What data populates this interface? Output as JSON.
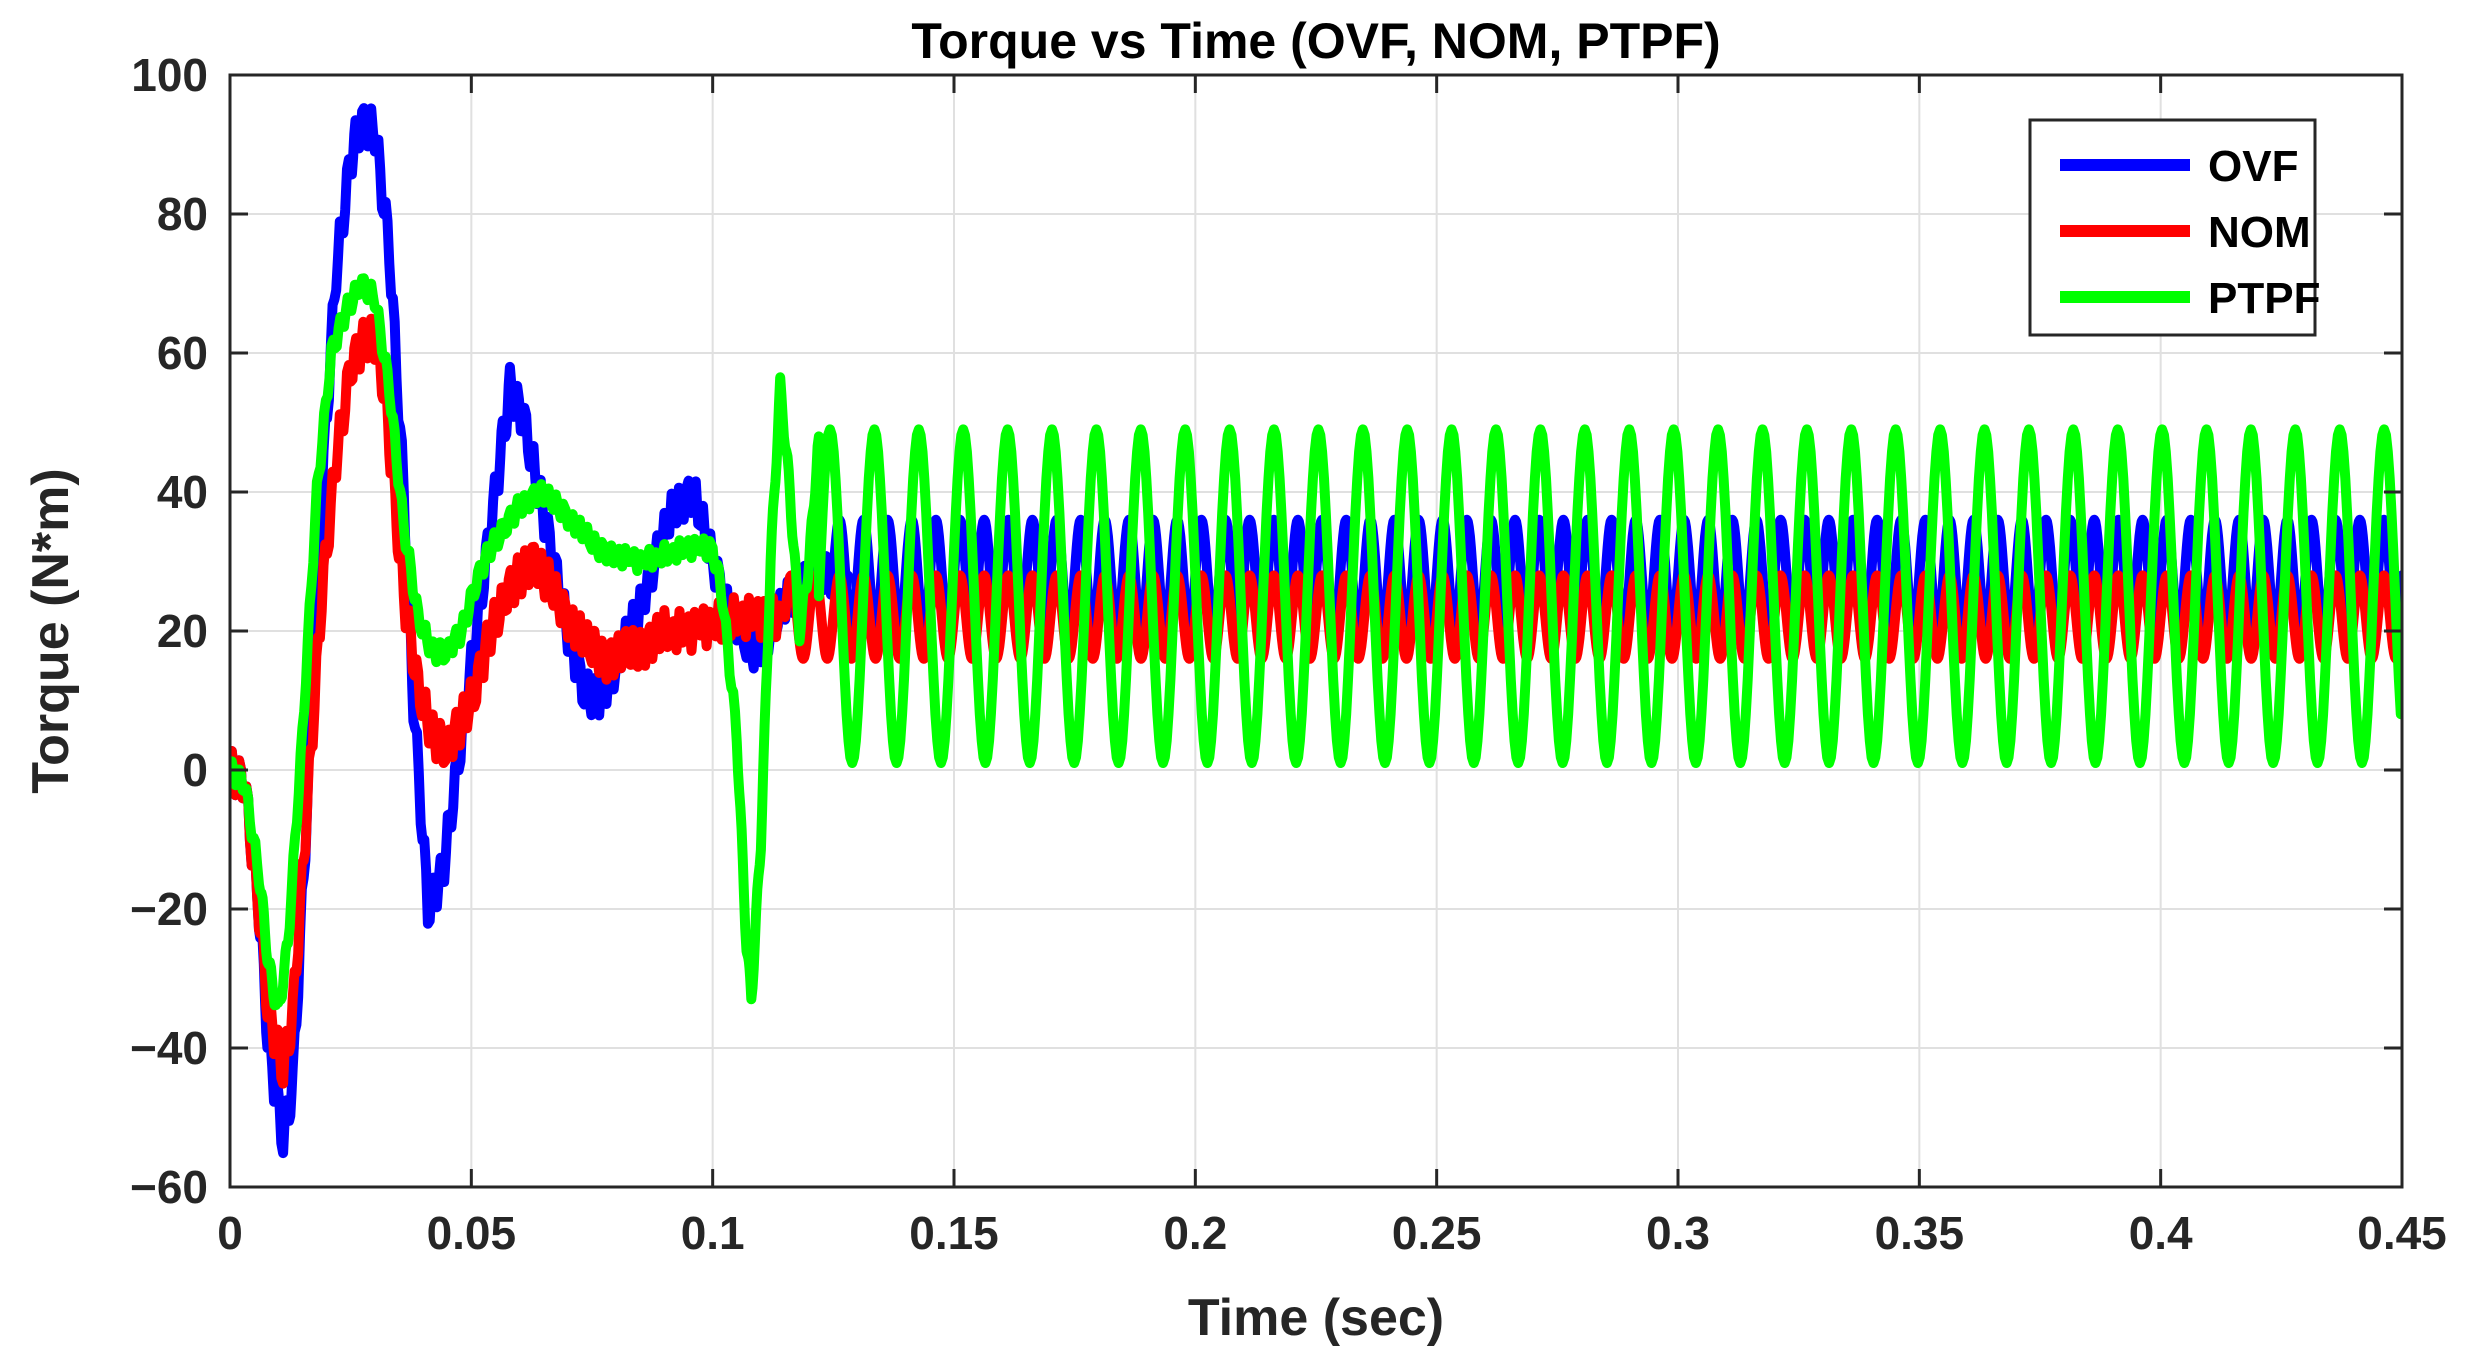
{
  "chart_data": {
    "type": "line",
    "title": "Torque vs Time (OVF, NOM, PTPF)",
    "xlabel": "Time (sec)",
    "ylabel": "Torque (N*m)",
    "xlim": [
      0,
      0.45
    ],
    "ylim": [
      -60,
      100
    ],
    "xticks": [
      0,
      0.05,
      0.1,
      0.15,
      0.2,
      0.25,
      0.3,
      0.35,
      0.4,
      0.45
    ],
    "xtick_labels": [
      "0",
      "0.05",
      "0.1",
      "0.15",
      "0.2",
      "0.25",
      "0.3",
      "0.35",
      "0.4",
      "0.45"
    ],
    "yticks": [
      -60,
      -40,
      -20,
      0,
      20,
      40,
      60,
      80,
      100
    ],
    "ytick_labels": [
      "−60",
      "−40",
      "−20",
      "0",
      "20",
      "40",
      "60",
      "80",
      "100"
    ],
    "grid": true,
    "legend_position": "top-right",
    "series": [
      {
        "name": "OVF",
        "color": "#0000ff",
        "x": [
          0,
          0.003,
          0.006,
          0.008,
          0.011,
          0.013,
          0.016,
          0.019,
          0.022,
          0.025,
          0.027,
          0.03,
          0.033,
          0.036,
          0.038,
          0.041,
          0.044,
          0.047,
          0.05,
          0.053,
          0.056,
          0.058,
          0.061,
          0.064,
          0.067,
          0.07,
          0.073,
          0.076,
          0.08,
          0.084,
          0.088,
          0.092,
          0.096,
          0.1,
          0.104,
          0.108,
          0.112,
          0.116,
          0.12,
          0.124,
          0.128
        ],
        "y": [
          0,
          -2,
          -20,
          -40,
          -53,
          -45,
          -5,
          40,
          72,
          88,
          93,
          92,
          75,
          40,
          10,
          -20,
          -15,
          0,
          15,
          30,
          45,
          55,
          50,
          40,
          30,
          20,
          12,
          10,
          15,
          22,
          30,
          38,
          40,
          30,
          22,
          17,
          20,
          25,
          28,
          28,
          28
        ],
        "oscillation": {
          "start": 0.125,
          "center": 28,
          "amplitude": 8,
          "period": 0.005
        }
      },
      {
        "name": "NOM",
        "color": "#ff0000",
        "x": [
          0,
          0.003,
          0.006,
          0.008,
          0.011,
          0.013,
          0.016,
          0.019,
          0.022,
          0.025,
          0.028,
          0.03,
          0.032,
          0.034,
          0.036,
          0.039,
          0.042,
          0.045,
          0.048,
          0.051,
          0.054,
          0.057,
          0.06,
          0.063,
          0.066,
          0.07,
          0.074,
          0.078,
          0.082,
          0.086,
          0.09,
          0.095,
          0.1,
          0.105,
          0.11,
          0.115
        ],
        "y": [
          0,
          -2,
          -20,
          -35,
          -43,
          -35,
          -5,
          25,
          45,
          58,
          62,
          62,
          55,
          40,
          25,
          12,
          5,
          3,
          7,
          12,
          20,
          25,
          28,
          30,
          27,
          22,
          18,
          16,
          17,
          18,
          20,
          20,
          21,
          22,
          22,
          22
        ],
        "oscillation": {
          "start": 0.115,
          "center": 22,
          "amplitude": 6,
          "period": 0.005
        }
      },
      {
        "name": "PTPF",
        "color": "#00ff00",
        "x": [
          0,
          0.003,
          0.006,
          0.008,
          0.01,
          0.012,
          0.015,
          0.018,
          0.021,
          0.024,
          0.027,
          0.03,
          0.033,
          0.036,
          0.039,
          0.042,
          0.045,
          0.048,
          0.051,
          0.054,
          0.057,
          0.06,
          0.064,
          0.068,
          0.072,
          0.076,
          0.08,
          0.085,
          0.09,
          0.095,
          0.1,
          0.102,
          0.105,
          0.107,
          0.108,
          0.11,
          0.112,
          0.114,
          0.116,
          0.118,
          0.12,
          0.122
        ],
        "y": [
          0,
          -2,
          -15,
          -28,
          -35,
          -25,
          5,
          40,
          60,
          66,
          70,
          68,
          55,
          35,
          22,
          17,
          17,
          20,
          27,
          32,
          35,
          38,
          40,
          38,
          35,
          32,
          31,
          30,
          31,
          32,
          32,
          25,
          5,
          -25,
          -33,
          -10,
          30,
          55,
          40,
          20,
          30,
          48
        ],
        "oscillation": {
          "start": 0.122,
          "center": 25,
          "amplitude": 24,
          "period": 0.0092
        }
      }
    ]
  }
}
